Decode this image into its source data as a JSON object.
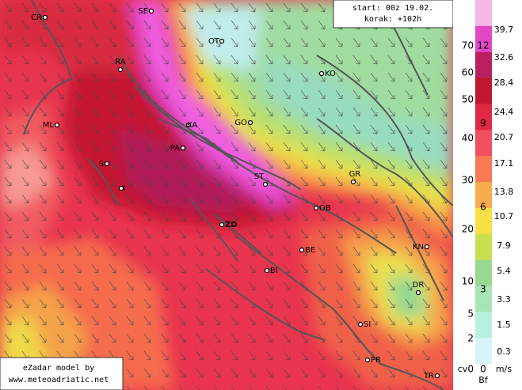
{
  "info": {
    "start": "start: 00z 19.02.",
    "step": "korak: +102h"
  },
  "credit": {
    "line1": "eZadar model by",
    "line2": "www.meteoadriatic.net"
  },
  "cities": [
    "CR",
    "SE",
    "OT",
    "RA",
    "KO",
    "KA",
    "ML",
    "GO",
    "PA",
    "S",
    "I",
    "ST",
    "GR",
    "OB",
    "ZD",
    "BE",
    "BI",
    "KN",
    "DR",
    "SI",
    "PR",
    "TR"
  ],
  "legend": {
    "knots": [
      "70",
      "60",
      "50",
      "40",
      "30",
      "20",
      "10",
      "5",
      "2",
      "0"
    ],
    "calm": "cv",
    "beaufort": [
      "12",
      "9",
      "6",
      "3",
      "0"
    ],
    "beaufort_unit": "Bf",
    "ms": [
      "39.7",
      "32.6",
      "28.4",
      "24.4",
      "20.7",
      "17.1",
      "13.8",
      "10.7",
      "7.9",
      "5.4",
      "3.3",
      "1.5",
      "0.3"
    ],
    "ms_unit": "m/s"
  }
}
